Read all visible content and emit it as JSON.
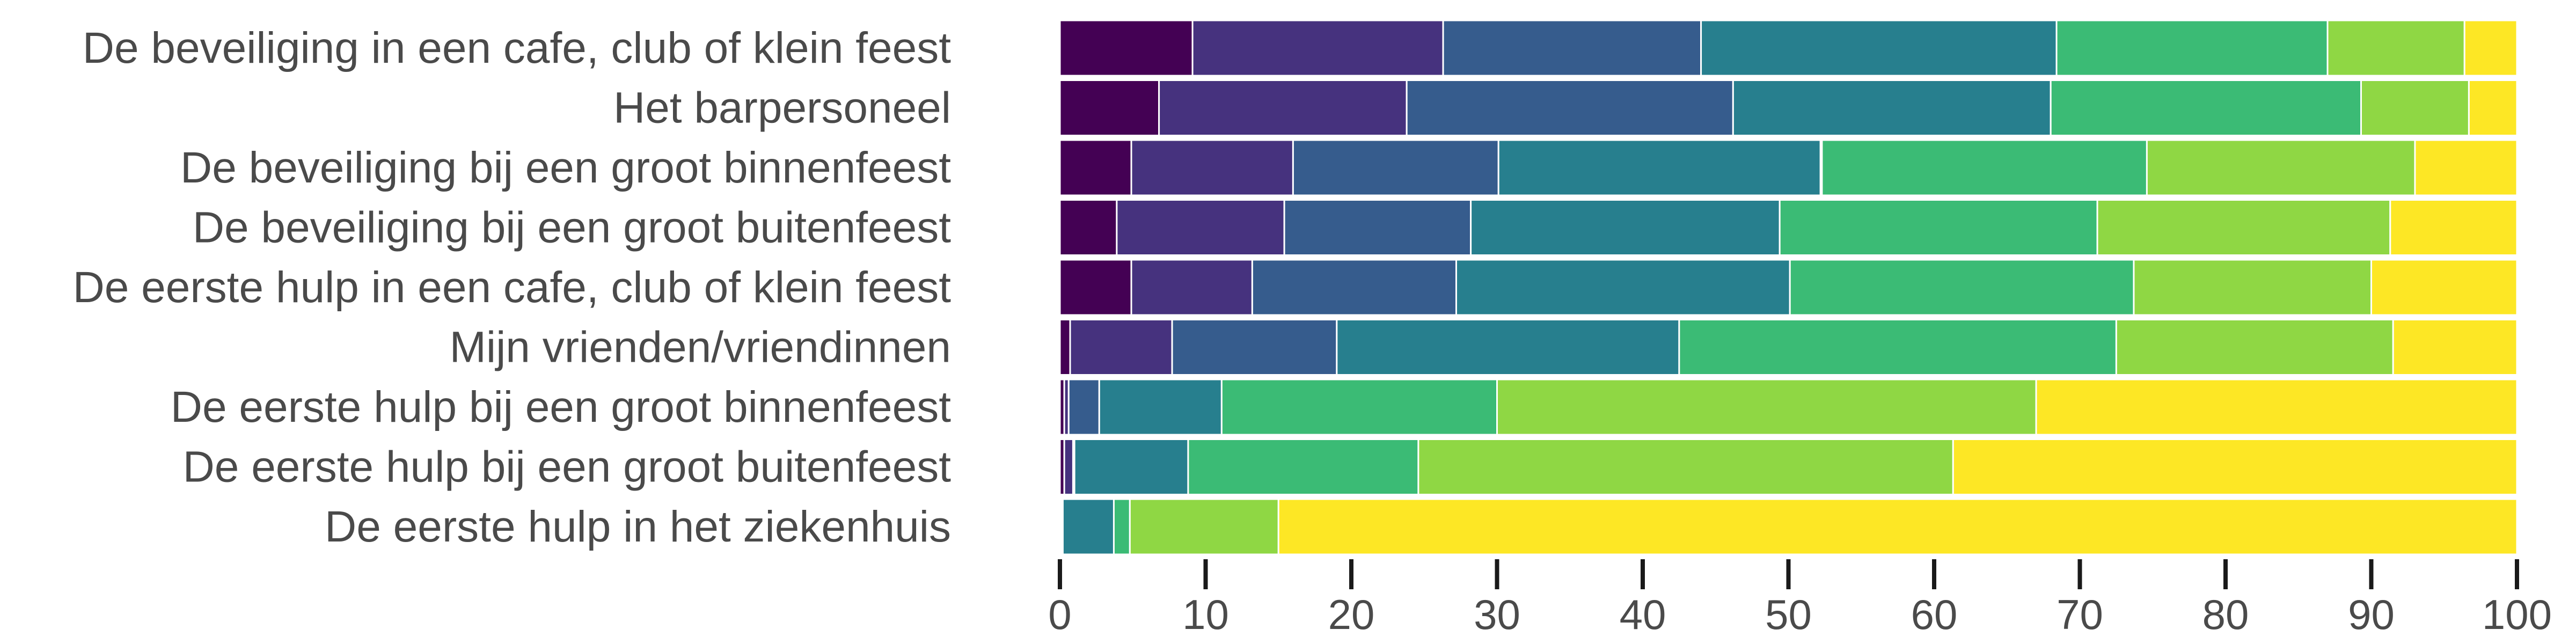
{
  "chart_data": {
    "type": "bar",
    "orientation": "horizontal",
    "stacked": true,
    "title": "",
    "xlabel": "",
    "ylabel": "",
    "xlim": [
      0,
      100
    ],
    "xticks": [
      0,
      10,
      20,
      30,
      40,
      50,
      60,
      70,
      80,
      90,
      100
    ],
    "grid": false,
    "legend": "none",
    "categories": [
      "De beveiliging in een cafe, club of klein feest",
      "Het barpersoneel",
      "De beveiliging bij een groot binnenfeest",
      "De beveiliging bij een groot buitenfeest",
      "De eerste hulp in een cafe, club of klein feest",
      "Mijn vrienden/vriendinnen",
      "De eerste hulp bij een groot binnenfeest",
      "De eerste hulp bij een groot buitenfeest",
      "De eerste hulp in het ziekenhuis"
    ],
    "colors": [
      "#440154",
      "#46327e",
      "#365c8d",
      "#277f8e",
      "#1fa187",
      "#3bbb75",
      "#8fd744",
      "#fde725"
    ],
    "series": [
      {
        "values": [
          9.1,
          6.8,
          4.9,
          3.9,
          4.9,
          0.7,
          0.3,
          0.3,
          0.1
        ]
      },
      {
        "values": [
          17.2,
          17.0,
          11.1,
          11.5,
          8.3,
          7.0,
          0.3,
          0.6,
          0.1
        ]
      },
      {
        "values": [
          17.7,
          22.4,
          14.1,
          12.8,
          14.0,
          11.3,
          2.1,
          0.1,
          0.0
        ]
      },
      {
        "values": [
          24.4,
          21.8,
          22.1,
          21.2,
          22.9,
          23.5,
          8.4,
          7.8,
          3.5
        ]
      },
      {
        "values": [
          0.0,
          0.0,
          0.1,
          0.0,
          0.0,
          0.0,
          0.0,
          0.0,
          0.0
        ]
      },
      {
        "values": [
          18.6,
          21.3,
          22.3,
          21.8,
          23.6,
          30.0,
          18.9,
          15.8,
          1.1
        ]
      },
      {
        "values": [
          9.4,
          7.4,
          18.4,
          20.1,
          16.3,
          19.0,
          37.0,
          36.7,
          10.2
        ]
      },
      {
        "values": [
          3.6,
          3.3,
          7.0,
          8.7,
          10.0,
          8.5,
          33.0,
          38.7,
          85.0
        ]
      }
    ]
  }
}
